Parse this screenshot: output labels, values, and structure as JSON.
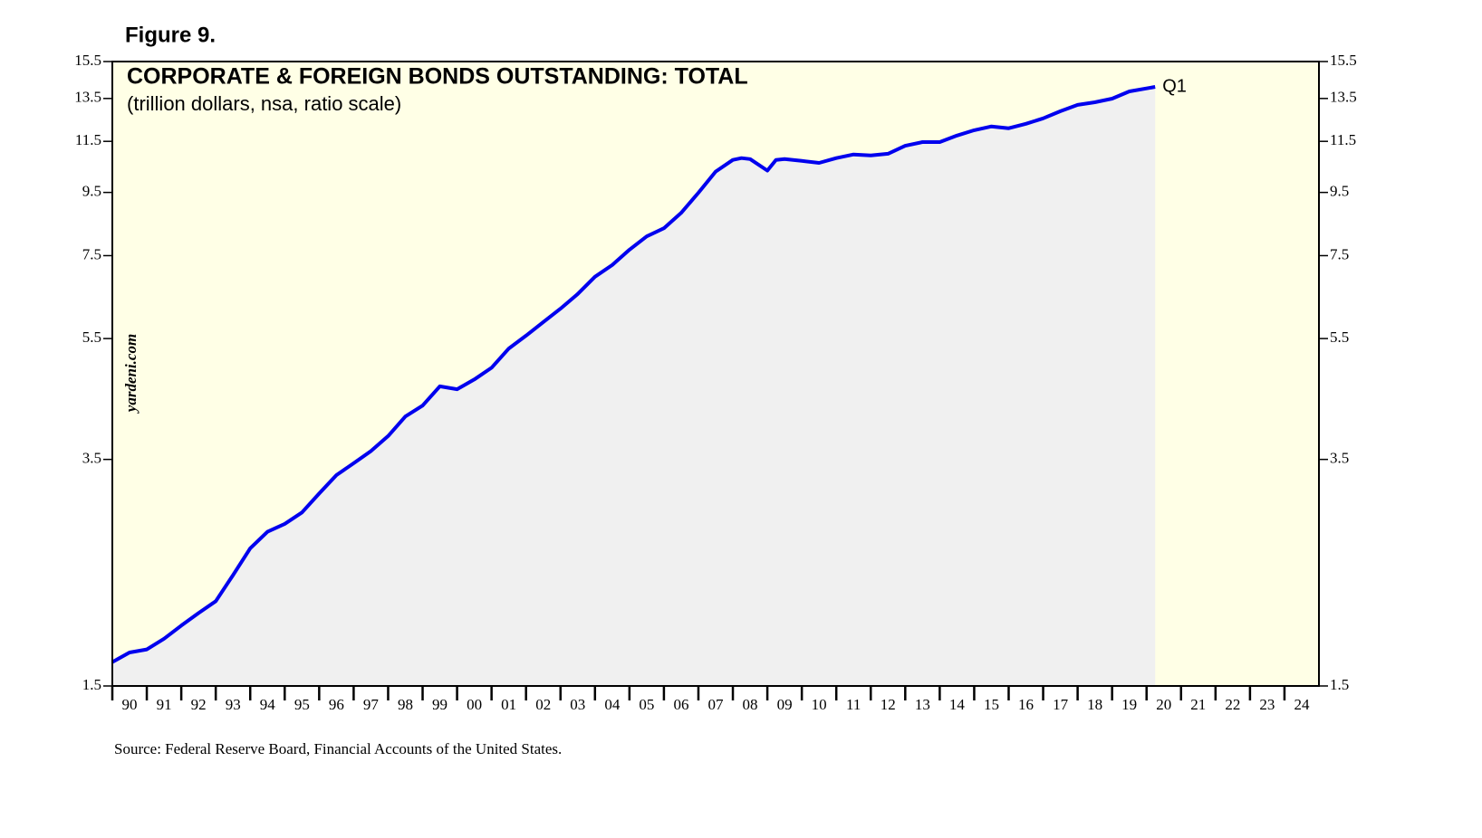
{
  "chart_data": {
    "type": "line",
    "figure_label": "Figure 9.",
    "title": "CORPORATE & FOREIGN BONDS OUTSTANDING: TOTAL",
    "subtitle": "(trillion dollars, nsa, ratio scale)",
    "watermark": "yardeni.com",
    "end_label": "Q1",
    "source": "Source: Federal Reserve Board, Financial Accounts of the United States.",
    "log_scale": true,
    "plot_color": "#ffffe6",
    "area_color": "#f0f0f0",
    "series": [
      {
        "name": "Corporate & foreign bonds outstanding",
        "color": "#0000ee",
        "x": [
          1990.0,
          1990.5,
          1991.0,
          1991.5,
          1992.0,
          1992.5,
          1993.0,
          1993.5,
          1994.0,
          1994.5,
          1995.0,
          1995.5,
          1996.0,
          1996.5,
          1997.0,
          1997.5,
          1998.0,
          1998.5,
          1999.0,
          1999.5,
          2000.0,
          2000.5,
          2001.0,
          2001.5,
          2002.0,
          2002.5,
          2003.0,
          2003.5,
          2004.0,
          2004.5,
          2005.0,
          2005.5,
          2006.0,
          2006.5,
          2007.0,
          2007.5,
          2008.0,
          2008.25,
          2008.5,
          2009.0,
          2009.25,
          2009.5,
          2010.0,
          2010.5,
          2011.0,
          2011.5,
          2012.0,
          2012.5,
          2013.0,
          2013.5,
          2014.0,
          2014.5,
          2015.0,
          2015.5,
          2016.0,
          2016.5,
          2017.0,
          2017.5,
          2018.0,
          2018.5,
          2019.0,
          2019.5,
          2020.25
        ],
        "values": [
          1.64,
          1.7,
          1.72,
          1.79,
          1.88,
          1.97,
          2.06,
          2.27,
          2.51,
          2.67,
          2.75,
          2.87,
          3.08,
          3.3,
          3.45,
          3.61,
          3.82,
          4.11,
          4.28,
          4.6,
          4.55,
          4.72,
          4.93,
          5.3,
          5.56,
          5.85,
          6.15,
          6.5,
          6.93,
          7.24,
          7.67,
          8.06,
          8.31,
          8.8,
          9.49,
          10.27,
          10.73,
          10.8,
          10.76,
          10.31,
          10.73,
          10.76,
          10.69,
          10.61,
          10.8,
          10.95,
          10.91,
          10.98,
          11.31,
          11.47,
          11.47,
          11.75,
          11.99,
          12.16,
          12.08,
          12.28,
          12.53,
          12.87,
          13.18,
          13.31,
          13.49,
          13.86,
          14.1
        ]
      }
    ],
    "xlim": [
      1990,
      2025
    ],
    "xticks": [
      {
        "value": 1990,
        "label": "90"
      },
      {
        "value": 1991,
        "label": "91"
      },
      {
        "value": 1992,
        "label": "92"
      },
      {
        "value": 1993,
        "label": "93"
      },
      {
        "value": 1994,
        "label": "94"
      },
      {
        "value": 1995,
        "label": "95"
      },
      {
        "value": 1996,
        "label": "96"
      },
      {
        "value": 1997,
        "label": "97"
      },
      {
        "value": 1998,
        "label": "98"
      },
      {
        "value": 1999,
        "label": "99"
      },
      {
        "value": 2000,
        "label": "00"
      },
      {
        "value": 2001,
        "label": "01"
      },
      {
        "value": 2002,
        "label": "02"
      },
      {
        "value": 2003,
        "label": "03"
      },
      {
        "value": 2004,
        "label": "04"
      },
      {
        "value": 2005,
        "label": "05"
      },
      {
        "value": 2006,
        "label": "06"
      },
      {
        "value": 2007,
        "label": "07"
      },
      {
        "value": 2008,
        "label": "08"
      },
      {
        "value": 2009,
        "label": "09"
      },
      {
        "value": 2010,
        "label": "10"
      },
      {
        "value": 2011,
        "label": "11"
      },
      {
        "value": 2012,
        "label": "12"
      },
      {
        "value": 2013,
        "label": "13"
      },
      {
        "value": 2014,
        "label": "14"
      },
      {
        "value": 2015,
        "label": "15"
      },
      {
        "value": 2016,
        "label": "16"
      },
      {
        "value": 2017,
        "label": "17"
      },
      {
        "value": 2018,
        "label": "18"
      },
      {
        "value": 2019,
        "label": "19"
      },
      {
        "value": 2020,
        "label": "20"
      },
      {
        "value": 2021,
        "label": "21"
      },
      {
        "value": 2022,
        "label": "22"
      },
      {
        "value": 2023,
        "label": "23"
      },
      {
        "value": 2024,
        "label": "24"
      }
    ],
    "ylim": [
      1.5,
      15.5
    ],
    "yticks": [
      1.5,
      3.5,
      5.5,
      7.5,
      9.5,
      11.5,
      13.5,
      15.5
    ]
  }
}
